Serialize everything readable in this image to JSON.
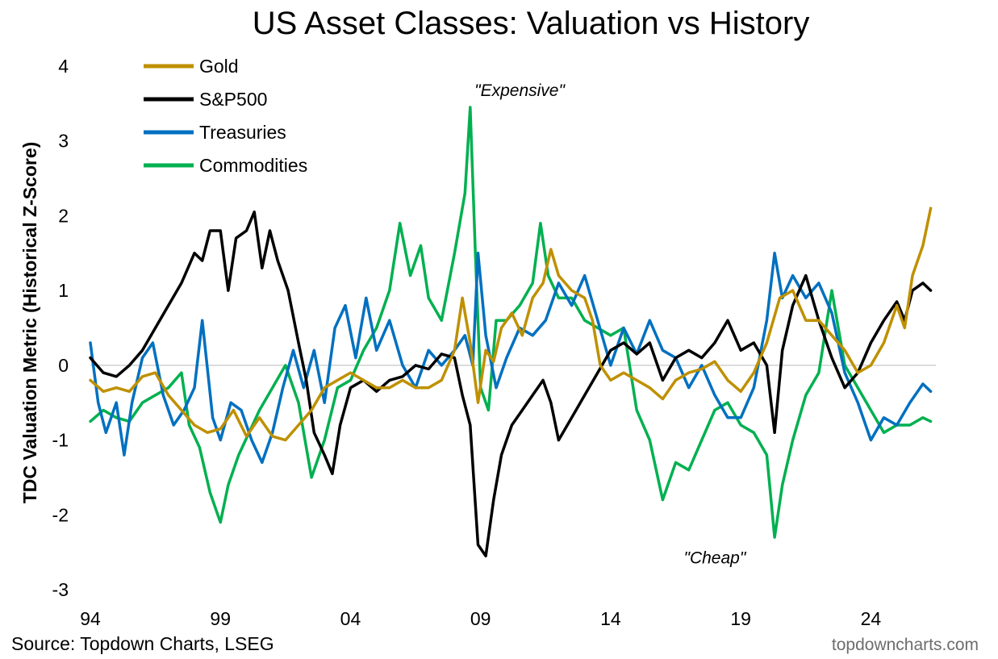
{
  "chart_data": {
    "type": "line",
    "title": "US Asset Classes: Valuation vs History",
    "ylabel": "TDC Valuation Metric (Historical Z-Score)",
    "xlabel": "",
    "xlim": [
      1994,
      2026.5
    ],
    "ylim": [
      -3,
      4
    ],
    "x_ticks": [
      1994,
      1999,
      2004,
      2009,
      2014,
      2019,
      2024
    ],
    "x_tick_labels": [
      "94",
      "99",
      "04",
      "09",
      "14",
      "19",
      "24"
    ],
    "y_ticks": [
      -3,
      -2,
      -1,
      0,
      1,
      2,
      3,
      4
    ],
    "y_tick_labels": [
      "-3",
      "-2",
      "-1",
      "0",
      "1",
      "2",
      "3",
      "4"
    ],
    "grid": false,
    "zero_line": true,
    "legend_position": "top-left",
    "annotations": [
      {
        "text": "\"Expensive\"",
        "x": 2010.5,
        "y": 3.6
      },
      {
        "text": "\"Cheap\"",
        "x": 2018.0,
        "y": -2.65
      }
    ],
    "series": [
      {
        "name": "Gold",
        "color": "#BF9000",
        "points": [
          [
            1994.0,
            -0.2
          ],
          [
            1994.5,
            -0.35
          ],
          [
            1995.0,
            -0.3
          ],
          [
            1995.5,
            -0.35
          ],
          [
            1996.0,
            -0.15
          ],
          [
            1996.5,
            -0.1
          ],
          [
            1997.0,
            -0.4
          ],
          [
            1997.5,
            -0.6
          ],
          [
            1998.0,
            -0.8
          ],
          [
            1998.5,
            -0.9
          ],
          [
            1999.0,
            -0.85
          ],
          [
            1999.5,
            -0.6
          ],
          [
            2000.0,
            -0.95
          ],
          [
            2000.5,
            -0.7
          ],
          [
            2001.0,
            -0.95
          ],
          [
            2001.5,
            -1.0
          ],
          [
            2002.0,
            -0.8
          ],
          [
            2002.5,
            -0.6
          ],
          [
            2003.0,
            -0.3
          ],
          [
            2003.5,
            -0.2
          ],
          [
            2004.0,
            -0.1
          ],
          [
            2004.5,
            -0.2
          ],
          [
            2005.0,
            -0.3
          ],
          [
            2005.5,
            -0.3
          ],
          [
            2006.0,
            -0.2
          ],
          [
            2006.5,
            -0.3
          ],
          [
            2007.0,
            -0.3
          ],
          [
            2007.5,
            -0.2
          ],
          [
            2008.0,
            0.2
          ],
          [
            2008.3,
            0.9
          ],
          [
            2008.6,
            0.3
          ],
          [
            2008.9,
            -0.5
          ],
          [
            2009.2,
            0.2
          ],
          [
            2009.5,
            0.05
          ],
          [
            2009.8,
            0.5
          ],
          [
            2010.2,
            0.7
          ],
          [
            2010.6,
            0.4
          ],
          [
            2011.0,
            0.9
          ],
          [
            2011.4,
            1.1
          ],
          [
            2011.7,
            1.55
          ],
          [
            2012.0,
            1.2
          ],
          [
            2012.5,
            1.0
          ],
          [
            2013.0,
            0.9
          ],
          [
            2013.3,
            0.6
          ],
          [
            2013.6,
            0.0
          ],
          [
            2014.0,
            -0.2
          ],
          [
            2014.5,
            -0.1
          ],
          [
            2015.0,
            -0.2
          ],
          [
            2015.5,
            -0.3
          ],
          [
            2016.0,
            -0.45
          ],
          [
            2016.5,
            -0.2
          ],
          [
            2017.0,
            -0.1
          ],
          [
            2017.5,
            -0.05
          ],
          [
            2018.0,
            0.05
          ],
          [
            2018.5,
            -0.2
          ],
          [
            2019.0,
            -0.35
          ],
          [
            2019.5,
            -0.1
          ],
          [
            2020.0,
            0.3
          ],
          [
            2020.5,
            0.9
          ],
          [
            2021.0,
            1.0
          ],
          [
            2021.5,
            0.6
          ],
          [
            2022.0,
            0.6
          ],
          [
            2022.5,
            0.4
          ],
          [
            2023.0,
            0.2
          ],
          [
            2023.5,
            -0.1
          ],
          [
            2024.0,
            0.0
          ],
          [
            2024.5,
            0.3
          ],
          [
            2025.0,
            0.8
          ],
          [
            2025.3,
            0.5
          ],
          [
            2025.6,
            1.2
          ],
          [
            2026.0,
            1.6
          ],
          [
            2026.3,
            2.1
          ]
        ]
      },
      {
        "name": "S&P500",
        "color": "#000000",
        "points": [
          [
            1994.0,
            0.1
          ],
          [
            1994.5,
            -0.1
          ],
          [
            1995.0,
            -0.15
          ],
          [
            1995.5,
            0.0
          ],
          [
            1996.0,
            0.2
          ],
          [
            1996.5,
            0.5
          ],
          [
            1997.0,
            0.8
          ],
          [
            1997.5,
            1.1
          ],
          [
            1998.0,
            1.5
          ],
          [
            1998.3,
            1.4
          ],
          [
            1998.6,
            1.8
          ],
          [
            1999.0,
            1.8
          ],
          [
            1999.3,
            1.0
          ],
          [
            1999.6,
            1.7
          ],
          [
            2000.0,
            1.8
          ],
          [
            2000.3,
            2.05
          ],
          [
            2000.6,
            1.3
          ],
          [
            2000.9,
            1.8
          ],
          [
            2001.2,
            1.4
          ],
          [
            2001.6,
            1.0
          ],
          [
            2002.0,
            0.3
          ],
          [
            2002.3,
            -0.2
          ],
          [
            2002.6,
            -0.9
          ],
          [
            2003.0,
            -1.2
          ],
          [
            2003.3,
            -1.45
          ],
          [
            2003.6,
            -0.8
          ],
          [
            2004.0,
            -0.3
          ],
          [
            2004.5,
            -0.2
          ],
          [
            2005.0,
            -0.35
          ],
          [
            2005.5,
            -0.2
          ],
          [
            2006.0,
            -0.15
          ],
          [
            2006.5,
            0.0
          ],
          [
            2007.0,
            -0.05
          ],
          [
            2007.5,
            0.15
          ],
          [
            2008.0,
            0.1
          ],
          [
            2008.3,
            -0.4
          ],
          [
            2008.6,
            -0.8
          ],
          [
            2008.9,
            -2.4
          ],
          [
            2009.2,
            -2.55
          ],
          [
            2009.5,
            -1.8
          ],
          [
            2009.8,
            -1.2
          ],
          [
            2010.2,
            -0.8
          ],
          [
            2010.6,
            -0.6
          ],
          [
            2011.0,
            -0.4
          ],
          [
            2011.4,
            -0.2
          ],
          [
            2011.7,
            -0.5
          ],
          [
            2012.0,
            -1.0
          ],
          [
            2012.5,
            -0.7
          ],
          [
            2013.0,
            -0.4
          ],
          [
            2013.5,
            -0.1
          ],
          [
            2014.0,
            0.2
          ],
          [
            2014.5,
            0.3
          ],
          [
            2015.0,
            0.15
          ],
          [
            2015.5,
            0.3
          ],
          [
            2016.0,
            -0.2
          ],
          [
            2016.5,
            0.1
          ],
          [
            2017.0,
            0.2
          ],
          [
            2017.5,
            0.1
          ],
          [
            2018.0,
            0.3
          ],
          [
            2018.5,
            0.6
          ],
          [
            2019.0,
            0.2
          ],
          [
            2019.5,
            0.3
          ],
          [
            2020.0,
            0.0
          ],
          [
            2020.3,
            -0.9
          ],
          [
            2020.6,
            0.2
          ],
          [
            2021.0,
            0.8
          ],
          [
            2021.5,
            1.2
          ],
          [
            2022.0,
            0.6
          ],
          [
            2022.5,
            0.1
          ],
          [
            2023.0,
            -0.3
          ],
          [
            2023.5,
            -0.1
          ],
          [
            2024.0,
            0.3
          ],
          [
            2024.5,
            0.6
          ],
          [
            2025.0,
            0.85
          ],
          [
            2025.3,
            0.6
          ],
          [
            2025.6,
            1.0
          ],
          [
            2026.0,
            1.1
          ],
          [
            2026.3,
            1.0
          ]
        ]
      },
      {
        "name": "Treasuries",
        "color": "#0070C0",
        "points": [
          [
            1994.0,
            0.3
          ],
          [
            1994.3,
            -0.5
          ],
          [
            1994.6,
            -0.9
          ],
          [
            1995.0,
            -0.5
          ],
          [
            1995.3,
            -1.2
          ],
          [
            1995.6,
            -0.5
          ],
          [
            1996.0,
            0.1
          ],
          [
            1996.4,
            0.3
          ],
          [
            1996.8,
            -0.4
          ],
          [
            1997.2,
            -0.8
          ],
          [
            1997.6,
            -0.6
          ],
          [
            1998.0,
            -0.3
          ],
          [
            1998.3,
            0.6
          ],
          [
            1998.7,
            -0.7
          ],
          [
            1999.0,
            -1.0
          ],
          [
            1999.4,
            -0.5
          ],
          [
            1999.8,
            -0.6
          ],
          [
            2000.2,
            -1.0
          ],
          [
            2000.6,
            -1.3
          ],
          [
            2001.0,
            -0.9
          ],
          [
            2001.4,
            -0.3
          ],
          [
            2001.8,
            0.2
          ],
          [
            2002.2,
            -0.3
          ],
          [
            2002.6,
            0.2
          ],
          [
            2003.0,
            -0.5
          ],
          [
            2003.4,
            0.5
          ],
          [
            2003.8,
            0.8
          ],
          [
            2004.2,
            0.1
          ],
          [
            2004.6,
            0.9
          ],
          [
            2005.0,
            0.2
          ],
          [
            2005.5,
            0.6
          ],
          [
            2006.0,
            0.0
          ],
          [
            2006.5,
            -0.3
          ],
          [
            2007.0,
            0.2
          ],
          [
            2007.5,
            0.0
          ],
          [
            2008.0,
            0.2
          ],
          [
            2008.4,
            0.4
          ],
          [
            2008.7,
            0.0
          ],
          [
            2008.9,
            1.5
          ],
          [
            2009.2,
            0.4
          ],
          [
            2009.6,
            -0.3
          ],
          [
            2010.0,
            0.1
          ],
          [
            2010.5,
            0.5
          ],
          [
            2011.0,
            0.4
          ],
          [
            2011.5,
            0.6
          ],
          [
            2012.0,
            1.1
          ],
          [
            2012.5,
            0.8
          ],
          [
            2013.0,
            1.2
          ],
          [
            2013.5,
            0.6
          ],
          [
            2014.0,
            0.0
          ],
          [
            2014.5,
            0.5
          ],
          [
            2015.0,
            0.15
          ],
          [
            2015.5,
            0.6
          ],
          [
            2016.0,
            0.2
          ],
          [
            2016.5,
            0.1
          ],
          [
            2017.0,
            -0.3
          ],
          [
            2017.5,
            0.0
          ],
          [
            2018.0,
            -0.4
          ],
          [
            2018.5,
            -0.7
          ],
          [
            2019.0,
            -0.7
          ],
          [
            2019.5,
            -0.3
          ],
          [
            2020.0,
            0.6
          ],
          [
            2020.3,
            1.5
          ],
          [
            2020.6,
            0.9
          ],
          [
            2021.0,
            1.2
          ],
          [
            2021.5,
            0.9
          ],
          [
            2022.0,
            1.1
          ],
          [
            2022.5,
            0.7
          ],
          [
            2023.0,
            -0.1
          ],
          [
            2023.5,
            -0.5
          ],
          [
            2024.0,
            -1.0
          ],
          [
            2024.5,
            -0.7
          ],
          [
            2025.0,
            -0.8
          ],
          [
            2025.5,
            -0.5
          ],
          [
            2026.0,
            -0.25
          ],
          [
            2026.3,
            -0.35
          ]
        ]
      },
      {
        "name": "Commodities",
        "color": "#00B050",
        "points": [
          [
            1994.0,
            -0.75
          ],
          [
            1994.5,
            -0.6
          ],
          [
            1995.0,
            -0.7
          ],
          [
            1995.5,
            -0.75
          ],
          [
            1996.0,
            -0.5
          ],
          [
            1996.5,
            -0.4
          ],
          [
            1997.0,
            -0.3
          ],
          [
            1997.5,
            -0.1
          ],
          [
            1997.8,
            -0.8
          ],
          [
            1998.2,
            -1.1
          ],
          [
            1998.6,
            -1.7
          ],
          [
            1999.0,
            -2.1
          ],
          [
            1999.3,
            -1.6
          ],
          [
            1999.7,
            -1.2
          ],
          [
            2000.1,
            -0.9
          ],
          [
            2000.5,
            -0.6
          ],
          [
            2001.0,
            -0.3
          ],
          [
            2001.5,
            0.0
          ],
          [
            2002.0,
            -0.5
          ],
          [
            2002.5,
            -1.5
          ],
          [
            2003.0,
            -1.0
          ],
          [
            2003.5,
            -0.3
          ],
          [
            2004.0,
            -0.2
          ],
          [
            2004.5,
            0.2
          ],
          [
            2005.0,
            0.5
          ],
          [
            2005.5,
            1.0
          ],
          [
            2005.9,
            1.9
          ],
          [
            2006.3,
            1.2
          ],
          [
            2006.7,
            1.6
          ],
          [
            2007.0,
            0.9
          ],
          [
            2007.5,
            0.6
          ],
          [
            2008.0,
            1.5
          ],
          [
            2008.4,
            2.3
          ],
          [
            2008.6,
            3.45
          ],
          [
            2008.8,
            1.5
          ],
          [
            2009.0,
            -0.3
          ],
          [
            2009.3,
            -0.6
          ],
          [
            2009.6,
            0.6
          ],
          [
            2010.0,
            0.6
          ],
          [
            2010.5,
            0.8
          ],
          [
            2011.0,
            1.1
          ],
          [
            2011.3,
            1.9
          ],
          [
            2011.6,
            1.2
          ],
          [
            2012.0,
            0.9
          ],
          [
            2012.5,
            0.9
          ],
          [
            2013.0,
            0.6
          ],
          [
            2013.5,
            0.5
          ],
          [
            2014.0,
            0.4
          ],
          [
            2014.5,
            0.5
          ],
          [
            2015.0,
            -0.6
          ],
          [
            2015.5,
            -1.0
          ],
          [
            2016.0,
            -1.8
          ],
          [
            2016.5,
            -1.3
          ],
          [
            2017.0,
            -1.4
          ],
          [
            2017.5,
            -1.0
          ],
          [
            2018.0,
            -0.6
          ],
          [
            2018.5,
            -0.5
          ],
          [
            2019.0,
            -0.8
          ],
          [
            2019.5,
            -0.9
          ],
          [
            2020.0,
            -1.2
          ],
          [
            2020.3,
            -2.3
          ],
          [
            2020.6,
            -1.6
          ],
          [
            2021.0,
            -1.0
          ],
          [
            2021.5,
            -0.4
          ],
          [
            2022.0,
            -0.1
          ],
          [
            2022.5,
            1.0
          ],
          [
            2023.0,
            0.0
          ],
          [
            2023.5,
            -0.3
          ],
          [
            2024.0,
            -0.6
          ],
          [
            2024.5,
            -0.9
          ],
          [
            2025.0,
            -0.8
          ],
          [
            2025.5,
            -0.8
          ],
          [
            2026.0,
            -0.7
          ],
          [
            2026.3,
            -0.75
          ]
        ]
      }
    ]
  },
  "footer": {
    "source": "Source: Topdown Charts, LSEG",
    "brand": "topdowncharts.com"
  }
}
